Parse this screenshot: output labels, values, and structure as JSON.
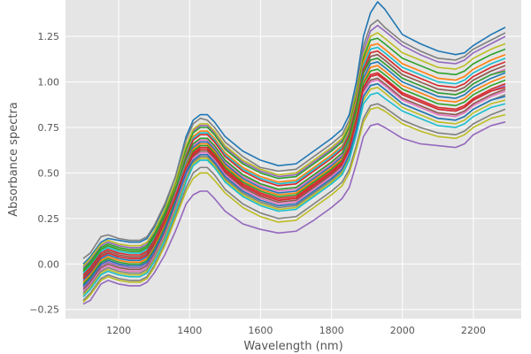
{
  "chart_data": {
    "type": "line",
    "title": "",
    "xlabel": "Wavelength (nm)",
    "ylabel": "Absorbance spectra",
    "xlim": [
      1050,
      2335
    ],
    "ylim": [
      -0.3,
      1.45
    ],
    "grid": true,
    "legend": "none",
    "background_color": "#e5e5e5",
    "grid_color": "#ffffff",
    "x_ticks": [
      1200,
      1400,
      1600,
      1800,
      2000,
      2200
    ],
    "x_tick_labels": [
      "1200",
      "1400",
      "1600",
      "1800",
      "2000",
      "2200"
    ],
    "y_ticks": [
      -0.25,
      0,
      0.25,
      0.5,
      0.75,
      1.0,
      1.25
    ],
    "y_tick_labels": [
      "−0.25",
      "0.00",
      "0.25",
      "0.50",
      "0.75",
      "1.00",
      "1.25"
    ],
    "x": [
      1100,
      1120,
      1150,
      1170,
      1200,
      1230,
      1260,
      1280,
      1300,
      1330,
      1360,
      1390,
      1410,
      1430,
      1450,
      1470,
      1500,
      1550,
      1600,
      1650,
      1700,
      1750,
      1800,
      1830,
      1850,
      1870,
      1890,
      1910,
      1930,
      1950,
      2000,
      2050,
      2100,
      2150,
      2175,
      2200,
      2250,
      2290
    ],
    "series": [
      {
        "color": "#1f77b4",
        "values": [
          0.0,
          0.04,
          0.12,
          0.14,
          0.13,
          0.12,
          0.12,
          0.14,
          0.2,
          0.32,
          0.48,
          0.7,
          0.79,
          0.82,
          0.82,
          0.78,
          0.7,
          0.62,
          0.57,
          0.54,
          0.55,
          0.62,
          0.69,
          0.74,
          0.82,
          1.0,
          1.25,
          1.38,
          1.44,
          1.4,
          1.26,
          1.21,
          1.17,
          1.15,
          1.16,
          1.2,
          1.26,
          1.3
        ]
      },
      {
        "color": "#7f7f7f",
        "values": [
          0.03,
          0.06,
          0.15,
          0.16,
          0.14,
          0.13,
          0.13,
          0.15,
          0.21,
          0.33,
          0.48,
          0.68,
          0.77,
          0.8,
          0.79,
          0.75,
          0.67,
          0.59,
          0.53,
          0.51,
          0.52,
          0.59,
          0.66,
          0.71,
          0.79,
          0.96,
          1.2,
          1.31,
          1.34,
          1.3,
          1.22,
          1.17,
          1.13,
          1.12,
          1.14,
          1.18,
          1.23,
          1.27
        ]
      },
      {
        "color": "#9467bd",
        "values": [
          -0.02,
          0.02,
          0.1,
          0.12,
          0.1,
          0.09,
          0.09,
          0.11,
          0.17,
          0.29,
          0.44,
          0.64,
          0.73,
          0.76,
          0.76,
          0.72,
          0.64,
          0.56,
          0.51,
          0.48,
          0.49,
          0.56,
          0.63,
          0.68,
          0.76,
          0.93,
          1.17,
          1.28,
          1.31,
          1.28,
          1.2,
          1.15,
          1.11,
          1.1,
          1.12,
          1.16,
          1.21,
          1.25
        ]
      },
      {
        "color": "#bcbd22",
        "values": [
          -0.01,
          0.03,
          0.11,
          0.13,
          0.11,
          0.1,
          0.1,
          0.12,
          0.18,
          0.3,
          0.45,
          0.65,
          0.74,
          0.77,
          0.77,
          0.73,
          0.65,
          0.57,
          0.52,
          0.49,
          0.5,
          0.57,
          0.64,
          0.69,
          0.77,
          0.94,
          1.15,
          1.25,
          1.27,
          1.24,
          1.16,
          1.12,
          1.08,
          1.07,
          1.09,
          1.13,
          1.18,
          1.21
        ]
      },
      {
        "color": "#2ca02c",
        "values": [
          -0.03,
          0.01,
          0.09,
          0.11,
          0.09,
          0.08,
          0.08,
          0.1,
          0.16,
          0.28,
          0.43,
          0.63,
          0.72,
          0.75,
          0.75,
          0.71,
          0.63,
          0.55,
          0.5,
          0.47,
          0.48,
          0.55,
          0.62,
          0.67,
          0.75,
          0.92,
          1.13,
          1.23,
          1.24,
          1.21,
          1.13,
          1.09,
          1.05,
          1.04,
          1.06,
          1.1,
          1.15,
          1.18
        ]
      },
      {
        "color": "#ff7f0e",
        "values": [
          -0.04,
          0.0,
          0.08,
          0.1,
          0.08,
          0.07,
          0.07,
          0.09,
          0.15,
          0.27,
          0.42,
          0.61,
          0.7,
          0.73,
          0.73,
          0.69,
          0.61,
          0.53,
          0.48,
          0.45,
          0.46,
          0.53,
          0.6,
          0.65,
          0.73,
          0.9,
          1.11,
          1.2,
          1.21,
          1.18,
          1.1,
          1.06,
          1.02,
          1.01,
          1.03,
          1.07,
          1.12,
          1.15
        ]
      },
      {
        "color": "#17becf",
        "values": [
          -0.05,
          -0.01,
          0.07,
          0.09,
          0.07,
          0.06,
          0.06,
          0.08,
          0.14,
          0.26,
          0.41,
          0.6,
          0.69,
          0.72,
          0.72,
          0.68,
          0.6,
          0.52,
          0.47,
          0.44,
          0.45,
          0.52,
          0.59,
          0.64,
          0.72,
          0.88,
          1.09,
          1.18,
          1.19,
          1.16,
          1.08,
          1.04,
          1.0,
          0.99,
          1.01,
          1.05,
          1.1,
          1.13
        ]
      },
      {
        "color": "#d62728",
        "values": [
          -0.06,
          -0.02,
          0.06,
          0.08,
          0.06,
          0.05,
          0.05,
          0.07,
          0.13,
          0.25,
          0.4,
          0.59,
          0.68,
          0.71,
          0.71,
          0.67,
          0.59,
          0.51,
          0.46,
          0.43,
          0.44,
          0.51,
          0.58,
          0.63,
          0.71,
          0.87,
          1.07,
          1.16,
          1.17,
          1.14,
          1.06,
          1.02,
          0.98,
          0.97,
          0.99,
          1.03,
          1.08,
          1.11
        ]
      },
      {
        "color": "#8c564b",
        "values": [
          -0.07,
          -0.03,
          0.05,
          0.07,
          0.05,
          0.04,
          0.04,
          0.06,
          0.12,
          0.24,
          0.39,
          0.57,
          0.66,
          0.69,
          0.69,
          0.65,
          0.57,
          0.49,
          0.44,
          0.41,
          0.42,
          0.49,
          0.56,
          0.61,
          0.69,
          0.85,
          1.05,
          1.14,
          1.15,
          1.12,
          1.04,
          1.0,
          0.96,
          0.95,
          0.97,
          1.01,
          1.06,
          1.09
        ]
      },
      {
        "color": "#e377c2",
        "values": [
          -0.08,
          -0.04,
          0.04,
          0.06,
          0.04,
          0.03,
          0.03,
          0.05,
          0.11,
          0.23,
          0.38,
          0.56,
          0.65,
          0.68,
          0.68,
          0.64,
          0.56,
          0.48,
          0.43,
          0.4,
          0.41,
          0.48,
          0.55,
          0.6,
          0.68,
          0.84,
          1.04,
          1.12,
          1.13,
          1.1,
          1.02,
          0.98,
          0.94,
          0.93,
          0.95,
          0.99,
          1.04,
          1.07
        ]
      },
      {
        "color": "#1f77b4",
        "values": [
          -0.09,
          -0.05,
          0.03,
          0.05,
          0.03,
          0.02,
          0.02,
          0.04,
          0.1,
          0.22,
          0.37,
          0.55,
          0.64,
          0.67,
          0.67,
          0.63,
          0.55,
          0.47,
          0.42,
          0.39,
          0.4,
          0.47,
          0.54,
          0.59,
          0.67,
          0.82,
          1.02,
          1.1,
          1.11,
          1.08,
          1.0,
          0.96,
          0.92,
          0.91,
          0.93,
          0.97,
          1.02,
          1.05
        ]
      },
      {
        "color": "#ff7f0e",
        "values": [
          -0.1,
          -0.06,
          0.02,
          0.04,
          0.02,
          0.01,
          0.01,
          0.03,
          0.09,
          0.21,
          0.36,
          0.54,
          0.63,
          0.66,
          0.66,
          0.62,
          0.54,
          0.46,
          0.41,
          0.38,
          0.39,
          0.46,
          0.53,
          0.58,
          0.66,
          0.81,
          1.0,
          1.08,
          1.09,
          1.06,
          0.98,
          0.94,
          0.9,
          0.89,
          0.91,
          0.95,
          1.0,
          1.03
        ]
      },
      {
        "color": "#2ca02c",
        "values": [
          -0.11,
          -0.07,
          0.01,
          0.03,
          0.01,
          0.0,
          0.0,
          0.02,
          0.08,
          0.2,
          0.35,
          0.53,
          0.62,
          0.65,
          0.65,
          0.61,
          0.53,
          0.45,
          0.4,
          0.37,
          0.38,
          0.45,
          0.52,
          0.57,
          0.65,
          0.8,
          0.99,
          1.06,
          1.07,
          1.04,
          0.96,
          0.92,
          0.88,
          0.87,
          0.89,
          0.93,
          0.98,
          1.01
        ]
      },
      {
        "color": "#d62728",
        "values": [
          -0.12,
          -0.08,
          0.0,
          0.02,
          0.0,
          -0.01,
          -0.01,
          0.01,
          0.07,
          0.19,
          0.34,
          0.52,
          0.61,
          0.64,
          0.64,
          0.6,
          0.52,
          0.44,
          0.39,
          0.36,
          0.37,
          0.44,
          0.51,
          0.56,
          0.64,
          0.79,
          0.97,
          1.04,
          1.05,
          1.02,
          0.94,
          0.9,
          0.86,
          0.85,
          0.87,
          0.91,
          0.96,
          0.99
        ]
      },
      {
        "color": "#9467bd",
        "values": [
          -0.13,
          -0.09,
          -0.01,
          0.01,
          -0.01,
          -0.02,
          -0.02,
          0.0,
          0.06,
          0.18,
          0.33,
          0.51,
          0.6,
          0.63,
          0.63,
          0.59,
          0.51,
          0.43,
          0.38,
          0.35,
          0.36,
          0.43,
          0.5,
          0.55,
          0.63,
          0.78,
          0.96,
          1.03,
          1.04,
          1.01,
          0.93,
          0.89,
          0.85,
          0.84,
          0.86,
          0.9,
          0.95,
          0.98
        ]
      },
      {
        "color": "#8c564b",
        "values": [
          -0.14,
          -0.1,
          -0.02,
          0.0,
          -0.02,
          -0.03,
          -0.03,
          -0.01,
          0.05,
          0.17,
          0.32,
          0.5,
          0.59,
          0.62,
          0.62,
          0.58,
          0.5,
          0.42,
          0.37,
          0.34,
          0.35,
          0.42,
          0.49,
          0.54,
          0.62,
          0.77,
          0.95,
          1.01,
          1.02,
          0.99,
          0.91,
          0.87,
          0.83,
          0.82,
          0.84,
          0.88,
          0.93,
          0.96
        ]
      },
      {
        "color": "#e377c2",
        "values": [
          -0.15,
          -0.11,
          -0.03,
          -0.01,
          -0.03,
          -0.04,
          -0.04,
          -0.02,
          0.04,
          0.16,
          0.31,
          0.49,
          0.58,
          0.61,
          0.61,
          0.57,
          0.49,
          0.41,
          0.36,
          0.33,
          0.34,
          0.41,
          0.48,
          0.53,
          0.61,
          0.76,
          0.94,
          1.0,
          1.01,
          0.98,
          0.9,
          0.86,
          0.82,
          0.81,
          0.83,
          0.87,
          0.92,
          0.95
        ]
      },
      {
        "color": "#7f7f7f",
        "values": [
          -0.16,
          -0.12,
          -0.04,
          -0.02,
          -0.04,
          -0.05,
          -0.05,
          -0.03,
          0.03,
          0.15,
          0.3,
          0.47,
          0.56,
          0.59,
          0.59,
          0.55,
          0.47,
          0.39,
          0.34,
          0.31,
          0.32,
          0.39,
          0.46,
          0.51,
          0.59,
          0.74,
          0.92,
          0.98,
          0.99,
          0.96,
          0.88,
          0.84,
          0.8,
          0.79,
          0.81,
          0.85,
          0.9,
          0.93
        ]
      },
      {
        "color": "#bcbd22",
        "values": [
          -0.17,
          -0.13,
          -0.05,
          -0.03,
          -0.05,
          -0.06,
          -0.06,
          -0.04,
          0.02,
          0.14,
          0.29,
          0.46,
          0.55,
          0.58,
          0.58,
          0.54,
          0.46,
          0.38,
          0.33,
          0.3,
          0.31,
          0.38,
          0.45,
          0.5,
          0.58,
          0.73,
          0.9,
          0.96,
          0.97,
          0.94,
          0.86,
          0.82,
          0.78,
          0.77,
          0.79,
          0.83,
          0.88,
          0.9
        ]
      },
      {
        "color": "#17becf",
        "values": [
          -0.18,
          -0.14,
          -0.06,
          -0.04,
          -0.06,
          -0.07,
          -0.07,
          -0.05,
          0.01,
          0.13,
          0.28,
          0.45,
          0.54,
          0.57,
          0.57,
          0.53,
          0.45,
          0.37,
          0.32,
          0.29,
          0.3,
          0.37,
          0.44,
          0.49,
          0.57,
          0.71,
          0.88,
          0.93,
          0.94,
          0.91,
          0.84,
          0.8,
          0.76,
          0.75,
          0.77,
          0.81,
          0.86,
          0.88
        ]
      },
      {
        "color": "#1f77b4",
        "values": [
          -0.12,
          -0.08,
          0.0,
          0.02,
          0.0,
          -0.01,
          -0.01,
          0.01,
          0.07,
          0.19,
          0.34,
          0.5,
          0.57,
          0.6,
          0.6,
          0.56,
          0.48,
          0.4,
          0.35,
          0.32,
          0.33,
          0.4,
          0.47,
          0.52,
          0.6,
          0.74,
          0.92,
          0.98,
          0.99,
          0.96,
          0.88,
          0.84,
          0.8,
          0.79,
          0.81,
          0.85,
          0.9,
          0.92
        ]
      },
      {
        "color": "#d62728",
        "values": [
          -0.08,
          -0.04,
          0.04,
          0.06,
          0.04,
          0.03,
          0.03,
          0.05,
          0.11,
          0.23,
          0.37,
          0.53,
          0.6,
          0.63,
          0.63,
          0.59,
          0.51,
          0.43,
          0.38,
          0.35,
          0.36,
          0.43,
          0.5,
          0.55,
          0.63,
          0.78,
          0.97,
          1.03,
          1.04,
          1.01,
          0.93,
          0.89,
          0.85,
          0.84,
          0.86,
          0.9,
          0.95,
          0.97
        ]
      },
      {
        "color": "#2ca02c",
        "values": [
          -0.04,
          0.0,
          0.08,
          0.1,
          0.08,
          0.07,
          0.07,
          0.09,
          0.15,
          0.27,
          0.41,
          0.58,
          0.66,
          0.69,
          0.69,
          0.65,
          0.57,
          0.49,
          0.44,
          0.41,
          0.42,
          0.49,
          0.56,
          0.61,
          0.69,
          0.85,
          1.05,
          1.12,
          1.13,
          1.1,
          1.02,
          0.98,
          0.94,
          0.93,
          0.95,
          0.99,
          1.04,
          1.06
        ]
      },
      {
        "color": "#7f7f7f",
        "values": [
          -0.2,
          -0.16,
          -0.08,
          -0.06,
          -0.08,
          -0.09,
          -0.09,
          -0.07,
          -0.01,
          0.11,
          0.26,
          0.42,
          0.5,
          0.53,
          0.53,
          0.49,
          0.41,
          0.33,
          0.28,
          0.25,
          0.26,
          0.33,
          0.4,
          0.45,
          0.52,
          0.65,
          0.8,
          0.87,
          0.88,
          0.86,
          0.79,
          0.75,
          0.72,
          0.71,
          0.73,
          0.77,
          0.82,
          0.85
        ]
      },
      {
        "color": "#bcbd22",
        "values": [
          -0.21,
          -0.17,
          -0.09,
          -0.07,
          -0.09,
          -0.1,
          -0.1,
          -0.08,
          -0.02,
          0.1,
          0.25,
          0.4,
          0.47,
          0.5,
          0.5,
          0.46,
          0.39,
          0.31,
          0.26,
          0.23,
          0.24,
          0.31,
          0.38,
          0.43,
          0.5,
          0.63,
          0.78,
          0.85,
          0.86,
          0.84,
          0.77,
          0.73,
          0.7,
          0.69,
          0.71,
          0.75,
          0.8,
          0.82
        ]
      },
      {
        "color": "#9467bd",
        "values": [
          -0.22,
          -0.2,
          -0.11,
          -0.09,
          -0.11,
          -0.12,
          -0.12,
          -0.1,
          -0.05,
          0.05,
          0.18,
          0.33,
          0.38,
          0.4,
          0.4,
          0.36,
          0.29,
          0.22,
          0.19,
          0.17,
          0.18,
          0.24,
          0.31,
          0.36,
          0.42,
          0.55,
          0.7,
          0.76,
          0.77,
          0.75,
          0.69,
          0.66,
          0.65,
          0.64,
          0.66,
          0.71,
          0.76,
          0.78
        ]
      }
    ]
  }
}
